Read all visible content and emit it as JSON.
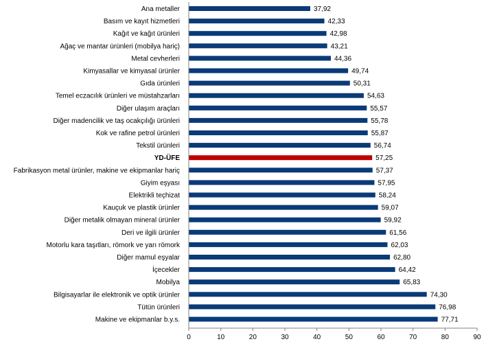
{
  "chart_data": {
    "type": "bar",
    "orientation": "horizontal",
    "categories": [
      "Ana metaller",
      "Basım ve kayıt hizmetleri",
      "Kağıt ve kağıt ürünleri",
      "Ağaç ve mantar ürünleri (mobilya hariç)",
      "Metal cevherleri",
      "Kimyasallar ve kimyasal ürünler",
      "Gıda ürünleri",
      "Temel eczacılık ürünleri ve müstahzarları",
      "Diğer ulaşım araçları",
      "Diğer madencilik ve taş ocakçılığı ürünleri",
      "Kok ve rafine petrol ürünleri",
      "Tekstil ürünleri",
      "YD-ÜFE",
      "Fabrikasyon metal ürünler, makine ve ekipmanlar hariç",
      "Giyim eşyası",
      "Elektrikli teçhizat",
      "Kauçuk ve plastik ürünler",
      "Diğer metalik olmayan mineral ürünler",
      "Deri ve ilgili ürünler",
      "Motorlu kara taşıtları, römork ve yarı römork",
      "Diğer mamul eşyalar",
      "İçecekler",
      "Mobilya",
      "Bilgisayarlar ile elektronik ve optik ürünler",
      "Tütün ürünleri",
      "Makine ve ekipmanlar b.y.s."
    ],
    "values": [
      37.92,
      42.33,
      42.98,
      43.21,
      44.36,
      49.74,
      50.31,
      54.63,
      55.57,
      55.78,
      55.87,
      56.74,
      57.25,
      57.37,
      57.95,
      58.24,
      59.07,
      59.92,
      61.56,
      62.03,
      62.8,
      64.42,
      65.83,
      74.3,
      76.98,
      77.71
    ],
    "value_labels": [
      "37,92",
      "42,33",
      "42,98",
      "43,21",
      "44,36",
      "49,74",
      "50,31",
      "54,63",
      "55,57",
      "55,78",
      "55,87",
      "56,74",
      "57,25",
      "57,37",
      "57,95",
      "58,24",
      "59,07",
      "59,92",
      "61,56",
      "62,03",
      "62,80",
      "64,42",
      "65,83",
      "74,30",
      "76,98",
      "77,71"
    ],
    "highlight_category": "YD-ÜFE",
    "xlim": [
      0,
      90
    ],
    "xticks": [
      0,
      10,
      20,
      30,
      40,
      50,
      60,
      70,
      80,
      90
    ],
    "title": "",
    "xlabel": "",
    "ylabel": "",
    "grid": false,
    "colors": {
      "bar": "#0a3a78",
      "highlight": "#c00000",
      "axis": "#808080"
    }
  }
}
